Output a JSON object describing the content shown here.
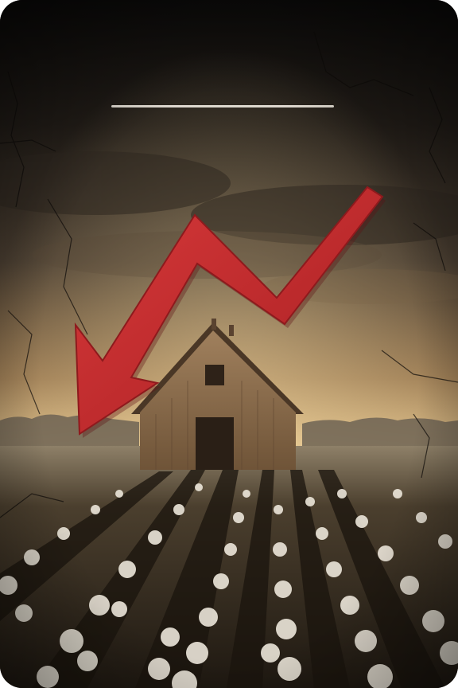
{
  "scene": {
    "subject": "barn-in-cotton-field",
    "overlay": "red-downward-trend-arrow",
    "colors": {
      "sky_top": "#0c0b0a",
      "sky_mid": "#3a3128",
      "sky_glow": "#c9a06a",
      "horizon": "#e7c990",
      "field_dark": "#2b2419",
      "cotton": "#ece6da",
      "barn": "#8a6b4c",
      "barn_shadow": "#3e2c1d",
      "arrow": "#c0282a",
      "arrow_dark": "#8e1a1d",
      "title_line": "#f2ece2"
    }
  }
}
